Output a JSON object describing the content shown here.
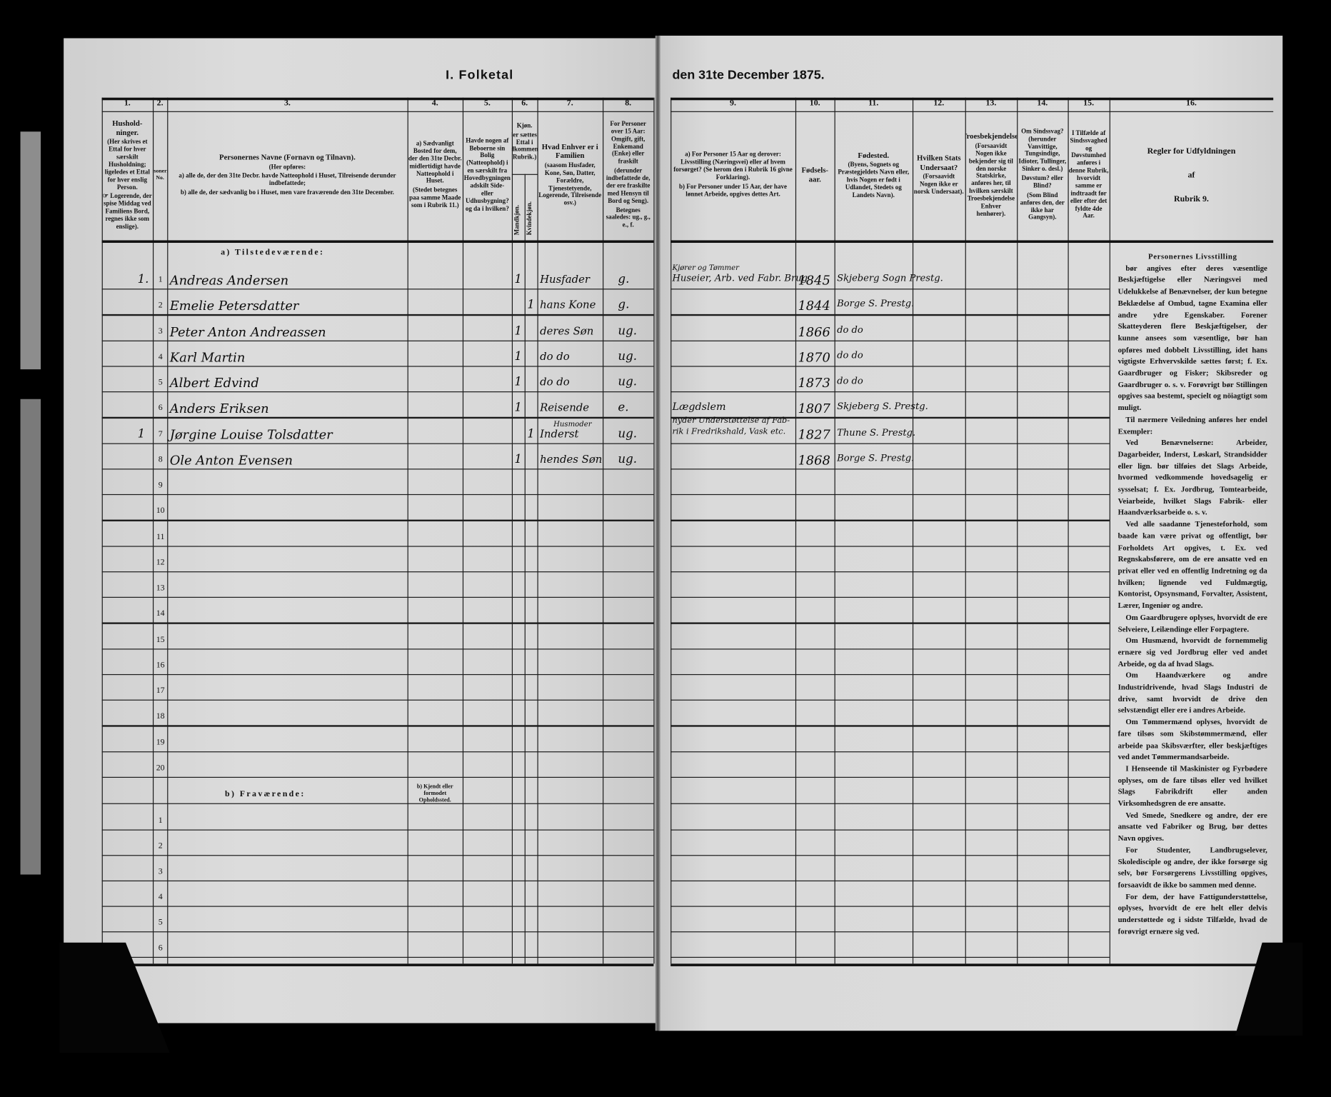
{
  "title": {
    "left": "I. Folketal",
    "right": "den 31te December 1875."
  },
  "column_numbers": [
    "1.",
    "2.",
    "3.",
    "4.",
    "5.",
    "6.",
    "7.",
    "8.",
    "9.",
    "10.",
    "11.",
    "12.",
    "13.",
    "14.",
    "15.",
    "16."
  ],
  "headers": [
    [
      "Hushold-ninger.",
      "(Her skrives et Ettal for hver særskilt Husholdning; ligeledes et Ettal for hver enslig Person.",
      "☞ Logerende, der spise Middag ved Familiens Bord, regnes ikke som enslige)."
    ],
    [
      "Personernes No."
    ],
    [
      "Personernes Navne (Fornavn og Tilnavn).",
      "(Her opføres:",
      "a) alle de, der den 31te Decbr. havde Natteophold i Huset, Tilreisende derunder indbefattede;",
      "b) alle de, der sædvanlig bo i Huset, men vare fraværende den 31te December."
    ],
    [
      "a) Sædvanligt Bosted for dem, der den 31te Decbr. midlertidigt havde Natteophold i Huset.",
      "(Stedet betegnes paa samme Maade som i Rubrik 11.)"
    ],
    [
      "Havde nogen af Beboerne sin Bolig (Natteophold) i en særskilt fra Hovedbygningen adskilt Side- eller Udhusbygning? og da i hvilken?"
    ],
    [
      "Kjøn.",
      "(Her sættes et Ettal i vedkommende Rubrik.)"
    ],
    [
      "Hvad Enhver er i Familien",
      "(saasom Husfader, Kone, Søn, Datter, Forældre, Tjenestetyende, Logerende, Tilreisende osv.)"
    ],
    [
      "For Personer over 15 Aar: Omgift, gift, Enkemand (Enke) eller fraskilt",
      "(derunder indbefattede de, der ere fraskilte med Hensyn til Bord og Seng).",
      "Betegnes saaledes: ug., g., e., f."
    ],
    [
      "a) For Personer 15 Aar og derover: Livsstilling (Næringsvei) eller af hvem forsørget? (Se herom den i Rubrik 16 givne Forklaring).",
      "b) For Personer under 15 Aar, der have lønnet Arbeide, opgives dettes Art."
    ],
    [
      "Fødsels-aar."
    ],
    [
      "Fødested.",
      "(Byens, Sognets og Præstegjeldets Navn eller, hvis Nogen er født i Udlandet, Stedets og Landets Navn)."
    ],
    [
      "Hvilken Stats Undersaat?",
      "(Forsaavidt Nogen ikke er norsk Undersaat)."
    ],
    [
      "Troesbekjendelse.",
      "(Forsaavidt Nogen ikke bekjender sig til den norske Statskirke, anføres her, til hvilken særskilt Troesbekjendelse Enhver henhører)."
    ],
    [
      "Om Sindssvag? (herunder Vanvittige, Tungsindige, Idioter, Tullinger, Sinker o. desl.)",
      "Døvstum? eller Blind?",
      "(Som Blind anføres den, der ikke har Gangsyn)."
    ],
    [
      "I Tilfælde af Sindssvaghed og Døvstumhed anføres i denne Rubrik, hvorvidt samme er indtraadt før eller efter det fyldte 4de Aar."
    ],
    [
      "Regler for Udfyldningen",
      "af",
      "Rubrik 9."
    ]
  ],
  "sex_subheaders": {
    "male": "Mandkjøn.",
    "female": "Kvindekjøn."
  },
  "sections": {
    "present": "a) Tilstedeværende:",
    "absent": "b) Fraværende:",
    "absent_location_header": "b) Kjendt eller formodet Opholdssted."
  },
  "present_row_numbers": [
    "1",
    "2",
    "3",
    "4",
    "5",
    "6",
    "7",
    "8",
    "9",
    "10",
    "11",
    "12",
    "13",
    "14",
    "15",
    "16",
    "17",
    "18",
    "19",
    "20"
  ],
  "absent_row_numbers": [
    "1",
    "2",
    "3",
    "4",
    "5",
    "6"
  ],
  "persons": [
    {
      "household": "1.",
      "name": "Andreas Andersen",
      "male": "1",
      "female": "",
      "position": "Husfader",
      "civil": "g.",
      "occupation_note": "Kjører og Tømmer",
      "occupation": "Huseier, Arb. ved Fabr. Brug",
      "year": "1845",
      "birthplace": "Skjeberg Sogn Prestg."
    },
    {
      "household": "",
      "name": "Emelie Petersdatter",
      "male": "",
      "female": "1",
      "position": "hans Kone",
      "civil": "g.",
      "occupation_note": "",
      "occupation": "",
      "year": "1844",
      "birthplace": "Borge S. Prestg."
    },
    {
      "household": "",
      "name": "Peter Anton Andreassen",
      "male": "1",
      "female": "",
      "position": "deres Søn",
      "civil": "ug.",
      "occupation_note": "",
      "occupation": "",
      "year": "1866",
      "birthplace": "do   do"
    },
    {
      "household": "",
      "name": "Karl Martin",
      "male": "1",
      "female": "",
      "position": "do   do",
      "civil": "ug.",
      "occupation_note": "",
      "occupation": "",
      "year": "1870",
      "birthplace": "do   do"
    },
    {
      "household": "",
      "name": "Albert Edvind",
      "male": "1",
      "female": "",
      "position": "do   do",
      "civil": "ug.",
      "occupation_note": "",
      "occupation": "",
      "year": "1873",
      "birthplace": "do   do"
    },
    {
      "household": "",
      "name": "Anders Eriksen",
      "male": "1",
      "female": "",
      "position": "Reisende",
      "civil": "e.",
      "occupation_note": "",
      "occupation": "Lægdslem",
      "year": "1807",
      "birthplace": "Skjeberg S. Prestg."
    },
    {
      "household": "1",
      "name": "Jørgine Louise Tolsdatter",
      "male": "",
      "female": "1",
      "position": "Inderst",
      "position_note": "Husmoder",
      "civil": "ug.",
      "occupation_note": "nyder Understøttelse af Fab-",
      "occupation": "rik i Fredrikshald, Vask etc.",
      "year": "1827",
      "birthplace": "Thune S. Prestg."
    },
    {
      "household": "",
      "name": "Ole Anton Evensen",
      "male": "1",
      "female": "",
      "position": "hendes Søn",
      "civil": "ug.",
      "occupation_note": "",
      "occupation": "",
      "year": "1868",
      "birthplace": "Borge S. Prestg."
    }
  ],
  "rules_text": [
    "Personernes Livsstilling",
    "bør angives efter deres væsentlige Beskjæftigelse eller Næringsvei med Udelukkelse af Benævnelser, der kun betegne Beklædelse af Ombud, tagne Examina eller andre ydre Egenskaber. Forener Skatteyderen flere Beskjæftigelser, der kunne ansees som væsentlige, bør han opføres med dobbelt Livsstilling, idet hans vigtigste Erhvervskilde sættes først; f. Ex. Gaardbruger og Fisker; Skibsreder og Gaardbruger o. s. v. Forøvrigt bør Stillingen opgives saa bestemt, specielt og nöiagtigt som muligt.",
    "Til nærmere Veiledning anføres her endel Exempler:",
    "Ved Benævnelserne: Arbeider, Dagarbeider, Inderst, Løskarl, Strandsidder eller lign. bør tilføies det Slags Arbeide, hvormed vedkommende hovedsagelig er sysselsat; f. Ex. Jordbrug, Tomtearbeide, Veiarbeide, hvilket Slags Fabrik- eller Haandværksarbeide o. s. v.",
    "Ved alle saadanne Tjenesteforhold, som baade kan være privat og offentligt, bør Forholdets Art opgives, t. Ex. ved Regnskabsførere, om de ere ansatte ved en privat eller ved en offentlig Indretning og da hvilken; lignende ved Fuldmægtig, Kontorist, Opsynsmand, Forvalter, Assistent, Lærer, Ingeniør og andre.",
    "Om Gaardbrugere oplyses, hvorvidt de ere Selveiere, Leilændinge eller Forpagtere.",
    "Om Husmænd, hvorvidt de fornemmelig ernære sig ved Jordbrug eller ved andet Arbeide, og da af hvad Slags.",
    "Om Haandværkere og andre Industridrivende, hvad Slags Industri de drive, samt hvorvidt de drive den selvstændigt eller ere i andres Arbeide.",
    "Om Tømmermænd oplyses, hvorvidt de fare tilsøs som Skibstømmermænd, eller arbeide paa Skibsværfter, eller beskjæftiges ved andet Tømmermandsarbeide.",
    "I Henseende til Maskinister og Fyrbødere oplyses, om de fare tilsøs eller ved hvilket Slags Fabrikdrift eller anden Virksomhedsgren de ere ansatte.",
    "Ved Smede, Snedkere og andre, der ere ansatte ved Fabriker og Brug, bør dettes Navn opgives.",
    "For Studenter, Landbrugselever, Skoledisciple og andre, der ikke forsørge sig selv, bør Forsørgerens Livsstilling opgives, forsaavidt de ikke bo sammen med denne.",
    "For dem, der have Fattigunderstøttelse, oplyses, hvorvidt de ere helt eller delvis understøttede og i sidste Tilfælde, hvad de forøvrigt ernære sig ved."
  ],
  "colors": {
    "background": "#000000",
    "paper": "#d9d9d9",
    "ink": "#111111"
  }
}
